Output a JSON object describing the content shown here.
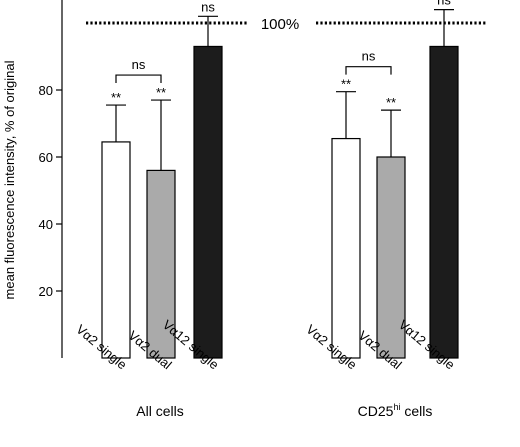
{
  "chart_data": {
    "type": "bar",
    "ylabel": "mean fluorescence intensity, % of original",
    "yticks": [
      20,
      40,
      60,
      80
    ],
    "ylim": [
      0,
      105
    ],
    "reference_line": {
      "value": 100,
      "label": "100%"
    },
    "grid": false,
    "colors": {
      "Vα2 single": "#ffffff",
      "Vα2 dual": "#aaaaaa",
      "Vα12 single": "#1c1c1c"
    },
    "groups": [
      {
        "name": "All cells",
        "bars": [
          {
            "category": "Vα2 single",
            "value": 64.5,
            "error": 11,
            "sig": "**"
          },
          {
            "category": "Vα2 dual",
            "value": 56,
            "error": 21,
            "sig": "**"
          },
          {
            "category": "Vα12 single",
            "value": 93,
            "error": 9,
            "sig": "ns"
          }
        ],
        "bracket_label": "ns"
      },
      {
        "name_main": "CD25",
        "name_sup": "hi",
        "name_tail": " cells",
        "bars": [
          {
            "category": "Vα2 single",
            "value": 65.5,
            "error": 14,
            "sig": "**"
          },
          {
            "category": "Vα2 dual",
            "value": 60,
            "error": 14,
            "sig": "**"
          },
          {
            "category": "Vα12 single",
            "value": 93,
            "error": 11,
            "sig": "ns"
          }
        ],
        "bracket_label": "ns"
      }
    ]
  }
}
